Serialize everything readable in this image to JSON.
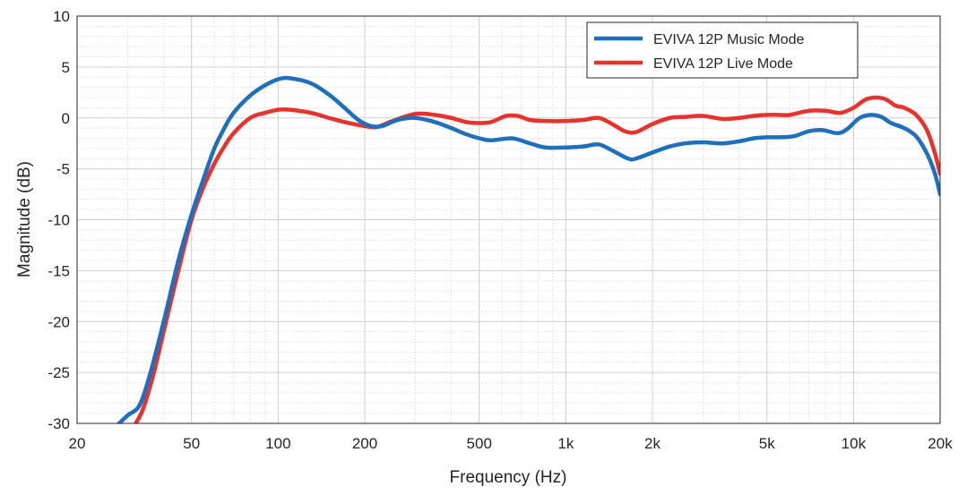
{
  "chart_data": {
    "type": "line",
    "title": "",
    "xlabel": "Frequency (Hz)",
    "ylabel": "Magnitude (dB)",
    "xscale": "log",
    "xlim": [
      20,
      20000
    ],
    "ylim": [
      -30,
      10
    ],
    "grid": true,
    "minor_grid": true,
    "legend_position": "top-right",
    "xticks": [
      {
        "value": 20,
        "label": "20"
      },
      {
        "value": 50,
        "label": "50"
      },
      {
        "value": 100,
        "label": "100"
      },
      {
        "value": 200,
        "label": "200"
      },
      {
        "value": 500,
        "label": "500"
      },
      {
        "value": 1000,
        "label": "1k"
      },
      {
        "value": 2000,
        "label": "2k"
      },
      {
        "value": 5000,
        "label": "5k"
      },
      {
        "value": 10000,
        "label": "10k"
      },
      {
        "value": 20000,
        "label": "20k"
      }
    ],
    "yticks": [
      10,
      5,
      0,
      -5,
      -10,
      -15,
      -20,
      -25,
      -30
    ],
    "series": [
      {
        "name": "EVIVA 12P Music Mode",
        "color": "#1f6fbf",
        "points": [
          [
            28,
            -30
          ],
          [
            30,
            -29.2
          ],
          [
            33,
            -28.2
          ],
          [
            36,
            -25
          ],
          [
            40,
            -20
          ],
          [
            45,
            -14
          ],
          [
            50,
            -9.5
          ],
          [
            55,
            -6
          ],
          [
            60,
            -3
          ],
          [
            65,
            -1
          ],
          [
            70,
            0.5
          ],
          [
            80,
            2.2
          ],
          [
            90,
            3.2
          ],
          [
            100,
            3.8
          ],
          [
            110,
            3.9
          ],
          [
            130,
            3.4
          ],
          [
            150,
            2.3
          ],
          [
            170,
            1
          ],
          [
            190,
            -0.2
          ],
          [
            210,
            -0.8
          ],
          [
            230,
            -0.8
          ],
          [
            260,
            -0.2
          ],
          [
            300,
            0
          ],
          [
            350,
            -0.4
          ],
          [
            400,
            -1
          ],
          [
            450,
            -1.6
          ],
          [
            500,
            -2
          ],
          [
            550,
            -2.2
          ],
          [
            650,
            -2
          ],
          [
            750,
            -2.5
          ],
          [
            850,
            -2.9
          ],
          [
            1000,
            -2.9
          ],
          [
            1150,
            -2.8
          ],
          [
            1300,
            -2.6
          ],
          [
            1450,
            -3.2
          ],
          [
            1650,
            -4
          ],
          [
            1750,
            -4
          ],
          [
            2000,
            -3.4
          ],
          [
            2300,
            -2.8
          ],
          [
            2600,
            -2.5
          ],
          [
            3000,
            -2.4
          ],
          [
            3500,
            -2.5
          ],
          [
            4000,
            -2.3
          ],
          [
            4500,
            -2
          ],
          [
            5000,
            -1.9
          ],
          [
            5500,
            -1.9
          ],
          [
            6200,
            -1.8
          ],
          [
            7000,
            -1.3
          ],
          [
            7800,
            -1.2
          ],
          [
            8800,
            -1.5
          ],
          [
            9500,
            -1.1
          ],
          [
            10500,
            0
          ],
          [
            11500,
            0.3
          ],
          [
            12500,
            0.1
          ],
          [
            13500,
            -0.5
          ],
          [
            15000,
            -1
          ],
          [
            16500,
            -1.8
          ],
          [
            18000,
            -3.5
          ],
          [
            19200,
            -5.5
          ],
          [
            20000,
            -7.5
          ]
        ]
      },
      {
        "name": "EVIVA 12P Live Mode",
        "color": "#e8322b",
        "points": [
          [
            32,
            -30
          ],
          [
            34,
            -28.5
          ],
          [
            37,
            -25
          ],
          [
            40,
            -21
          ],
          [
            45,
            -15
          ],
          [
            50,
            -10
          ],
          [
            55,
            -6.8
          ],
          [
            60,
            -4.5
          ],
          [
            65,
            -2.8
          ],
          [
            70,
            -1.5
          ],
          [
            80,
            0
          ],
          [
            90,
            0.5
          ],
          [
            100,
            0.8
          ],
          [
            110,
            0.8
          ],
          [
            130,
            0.5
          ],
          [
            150,
            0
          ],
          [
            170,
            -0.4
          ],
          [
            200,
            -0.8
          ],
          [
            220,
            -0.9
          ],
          [
            250,
            -0.3
          ],
          [
            300,
            0.4
          ],
          [
            350,
            0.3
          ],
          [
            400,
            0
          ],
          [
            450,
            -0.4
          ],
          [
            500,
            -0.5
          ],
          [
            550,
            -0.4
          ],
          [
            620,
            0.2
          ],
          [
            680,
            0.2
          ],
          [
            750,
            -0.2
          ],
          [
            850,
            -0.3
          ],
          [
            1000,
            -0.3
          ],
          [
            1150,
            -0.2
          ],
          [
            1300,
            0
          ],
          [
            1450,
            -0.6
          ],
          [
            1600,
            -1.3
          ],
          [
            1750,
            -1.4
          ],
          [
            2000,
            -0.6
          ],
          [
            2300,
            0
          ],
          [
            2600,
            0.1
          ],
          [
            3000,
            0.2
          ],
          [
            3500,
            -0.1
          ],
          [
            4000,
            0
          ],
          [
            4500,
            0.2
          ],
          [
            5000,
            0.3
          ],
          [
            5500,
            0.3
          ],
          [
            6000,
            0.3
          ],
          [
            7000,
            0.7
          ],
          [
            8000,
            0.7
          ],
          [
            9000,
            0.5
          ],
          [
            10000,
            1
          ],
          [
            11000,
            1.8
          ],
          [
            12000,
            2
          ],
          [
            13000,
            1.8
          ],
          [
            14000,
            1.2
          ],
          [
            15000,
            1
          ],
          [
            16500,
            0.3
          ],
          [
            18000,
            -1.2
          ],
          [
            19200,
            -3.5
          ],
          [
            20000,
            -5.5
          ]
        ]
      }
    ]
  }
}
